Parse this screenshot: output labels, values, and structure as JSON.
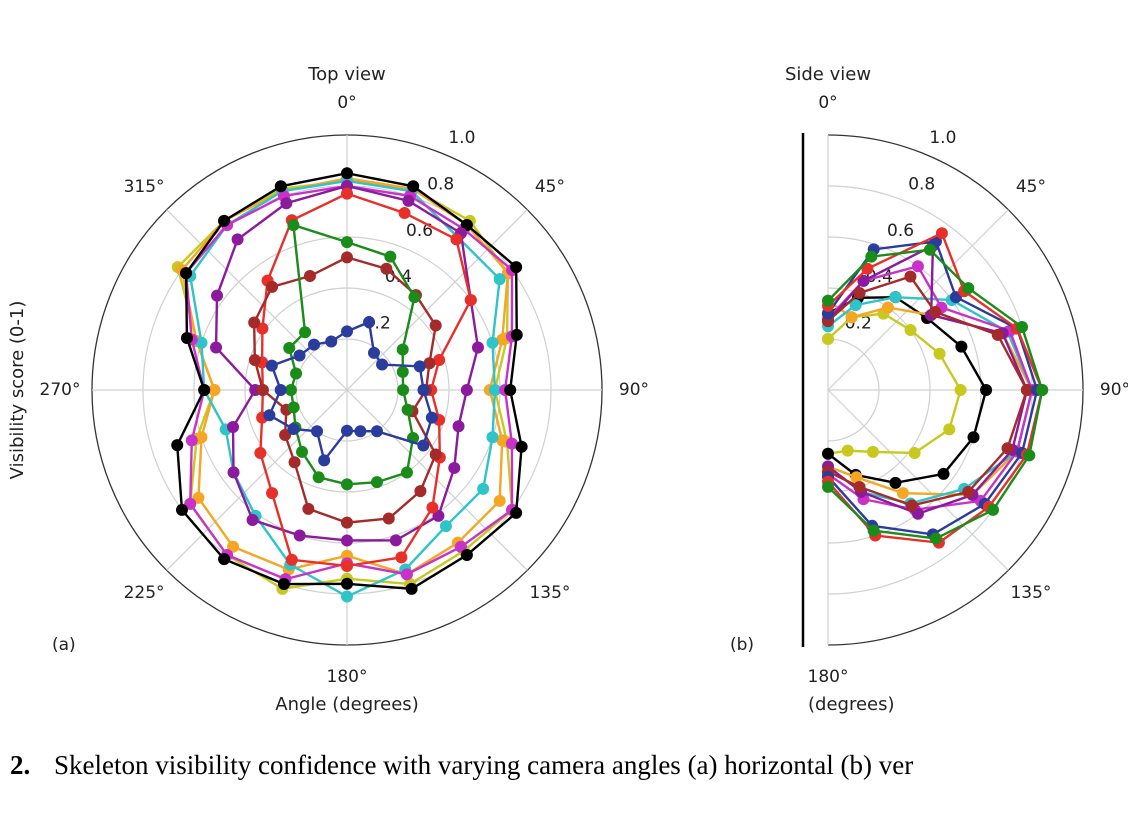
{
  "caption": {
    "number": "2.",
    "text": "Skeleton visibility confidence with varying camera angles (a) horizontal (b) ver"
  },
  "chart_data": [
    {
      "type": "polar",
      "title": "Top view",
      "ylabel": "Visibility score (0-1)",
      "xlabel": "Angle (degrees)",
      "panel": "(a)",
      "theta": [
        0,
        18,
        36,
        54,
        72,
        90,
        108,
        126,
        144,
        162,
        180,
        198,
        216,
        234,
        252,
        270,
        288,
        306,
        324,
        342
      ],
      "thetalim": [
        0,
        360
      ],
      "thetaticks": [
        {
          "value": 0,
          "label": "0°"
        },
        {
          "value": 45,
          "label": "45°"
        },
        {
          "value": 90,
          "label": "90°"
        },
        {
          "value": 135,
          "label": "135°"
        },
        {
          "value": 180,
          "label": "180°"
        },
        {
          "value": 225,
          "label": "225°"
        },
        {
          "value": 270,
          "label": "270°"
        },
        {
          "value": 315,
          "label": "315°"
        }
      ],
      "rlim": [
        0,
        1
      ],
      "rticks": [
        0.2,
        0.4,
        0.6,
        0.8,
        {
          "value": 1,
          "label": "1.0"
        }
      ],
      "series": [
        {
          "color": "#c8c81e",
          "values": [
            0.82,
            0.83,
            0.82,
            0.78,
            0.66,
            0.58,
            0.66,
            0.8,
            0.78,
            0.8,
            0.74,
            0.82,
            0.8,
            0.76,
            0.62,
            0.52,
            0.62,
            0.82,
            0.82,
            0.83
          ]
        },
        {
          "color": "#f5a623",
          "values": [
            0.83,
            0.83,
            0.8,
            0.78,
            0.64,
            0.56,
            0.64,
            0.74,
            0.74,
            0.76,
            0.65,
            0.74,
            0.76,
            0.72,
            0.6,
            0.52,
            0.62,
            0.8,
            0.82,
            0.82
          ]
        },
        {
          "color": "#2ec4c8",
          "values": [
            0.82,
            0.82,
            0.74,
            0.74,
            0.6,
            0.58,
            0.6,
            0.66,
            0.66,
            0.74,
            0.81,
            0.72,
            0.61,
            0.55,
            0.5,
            0.56,
            0.6,
            0.76,
            0.8,
            0.82
          ]
        },
        {
          "color": "#c832c8",
          "values": [
            0.8,
            0.8,
            0.78,
            0.8,
            0.68,
            0.62,
            0.68,
            0.8,
            0.76,
            0.76,
            0.68,
            0.78,
            0.8,
            0.76,
            0.64,
            0.56,
            0.64,
            0.78,
            0.8,
            0.8
          ]
        },
        {
          "color": "#000000",
          "values": [
            0.85,
            0.84,
            0.8,
            0.82,
            0.7,
            0.64,
            0.72,
            0.82,
            0.8,
            0.82,
            0.76,
            0.8,
            0.82,
            0.8,
            0.7,
            0.56,
            0.66,
            0.78,
            0.82,
            0.84
          ]
        },
        {
          "color": "#8b1a9c",
          "values": [
            0.8,
            0.78,
            0.76,
            0.6,
            0.54,
            0.47,
            0.46,
            0.52,
            0.61,
            0.62,
            0.59,
            0.6,
            0.63,
            0.55,
            0.47,
            0.36,
            0.54,
            0.63,
            0.73,
            0.77
          ]
        },
        {
          "color": "#e8302a",
          "values": [
            0.77,
            0.73,
            0.73,
            0.6,
            0.38,
            0.33,
            0.38,
            0.45,
            0.57,
            0.69,
            0.69,
            0.7,
            0.5,
            0.42,
            0.35,
            0.33,
            0.35,
            0.41,
            0.53,
            0.7
          ]
        },
        {
          "color": "#a52a2a",
          "values": [
            0.52,
            0.5,
            0.46,
            0.43,
            0.34,
            0.31,
            0.27,
            0.43,
            0.49,
            0.53,
            0.52,
            0.49,
            0.35,
            0.3,
            0.25,
            0.33,
            0.38,
            0.45,
            0.5,
            0.47
          ]
        },
        {
          "color": "#1a8c1a",
          "values": [
            0.58,
            0.55,
            0.45,
            0.27,
            0.23,
            0.22,
            0.25,
            0.32,
            0.4,
            0.38,
            0.37,
            0.36,
            0.3,
            0.25,
            0.22,
            0.22,
            0.21,
            0.28,
            0.28,
            0.68
          ]
        },
        {
          "color": "#2a3c9c",
          "values": [
            0.23,
            0.28,
            0.18,
            0.17,
            0.3,
            0.3,
            0.35,
            0.37,
            0.2,
            0.17,
            0.16,
            0.29,
            0.2,
            0.26,
            0.32,
            0.26,
            0.31,
            0.23,
            0.22,
            0.2
          ]
        }
      ]
    },
    {
      "type": "polar",
      "title": "Side view",
      "xlabel": "(degrees)",
      "panel": "(b)",
      "theta": [
        0,
        18,
        36,
        54,
        72,
        90,
        108,
        126,
        144,
        162,
        180
      ],
      "thetalim": [
        0,
        180
      ],
      "thetaticks": [
        {
          "value": 0,
          "label": "0°"
        },
        {
          "value": 45,
          "label": "45°"
        },
        {
          "value": 90,
          "label": "90°"
        },
        {
          "value": 135,
          "label": "135°"
        },
        {
          "value": 180,
          "label": "180°"
        }
      ],
      "rlim": [
        0,
        1
      ],
      "rticks": [
        0.2,
        0.4,
        0.6,
        0.8,
        {
          "value": 1,
          "label": "1.0"
        }
      ],
      "series": [
        {
          "color": "#c8c81e",
          "values": [
            0.2,
            0.3,
            0.37,
            0.4,
            0.46,
            0.52,
            0.5,
            0.42,
            0.3,
            0.25,
            0.25
          ]
        },
        {
          "color": "#000000",
          "values": [
            0.3,
            0.38,
            0.45,
            0.48,
            0.55,
            0.62,
            0.6,
            0.56,
            0.45,
            0.35,
            0.25
          ]
        },
        {
          "color": "#f5a623",
          "values": [
            0.35,
            0.3,
            0.4,
            0.5,
            0.72,
            0.8,
            0.78,
            0.7,
            0.5,
            0.36,
            0.3
          ]
        },
        {
          "color": "#2ec4c8",
          "values": [
            0.25,
            0.35,
            0.45,
            0.6,
            0.74,
            0.8,
            0.78,
            0.66,
            0.55,
            0.42,
            0.3
          ]
        },
        {
          "color": "#c832c8",
          "values": [
            0.28,
            0.45,
            0.6,
            0.55,
            0.75,
            0.8,
            0.78,
            0.74,
            0.58,
            0.45,
            0.33
          ]
        },
        {
          "color": "#8b1a9c",
          "values": [
            0.27,
            0.45,
            0.7,
            0.5,
            0.72,
            0.78,
            0.76,
            0.7,
            0.6,
            0.42,
            0.3
          ]
        },
        {
          "color": "#a52a2a",
          "values": [
            0.27,
            0.4,
            0.55,
            0.52,
            0.7,
            0.78,
            0.74,
            0.68,
            0.56,
            0.4,
            0.32
          ]
        },
        {
          "color": "#2a3c9c",
          "values": [
            0.3,
            0.58,
            0.72,
            0.62,
            0.78,
            0.82,
            0.8,
            0.76,
            0.7,
            0.56,
            0.34
          ]
        },
        {
          "color": "#e8302a",
          "values": [
            0.33,
            0.5,
            0.76,
            0.66,
            0.78,
            0.84,
            0.82,
            0.78,
            0.74,
            0.6,
            0.36
          ]
        },
        {
          "color": "#1a8c1a",
          "values": [
            0.35,
            0.55,
            0.68,
            0.68,
            0.8,
            0.84,
            0.83,
            0.8,
            0.72,
            0.58,
            0.38
          ]
        }
      ]
    }
  ]
}
